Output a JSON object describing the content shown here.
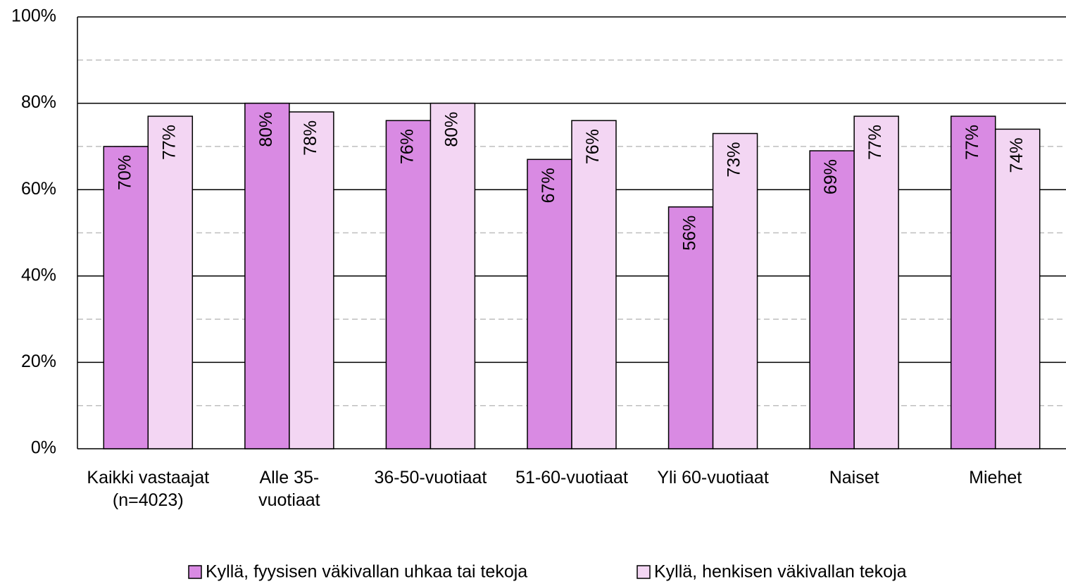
{
  "chart_data": {
    "type": "bar",
    "categories": [
      "Kaikki vastaajat\n(n=4023)",
      "Alle 35-\nvuotiaat",
      "36-50-vuotiaat",
      "51-60-vuotiaat",
      "Yli 60-vuotiaat",
      "Naiset",
      "Miehet"
    ],
    "series": [
      {
        "name": "Kyllä, fyysisen väkivallan uhkaa tai tekoja",
        "color": "#d98ae3",
        "values": [
          70,
          80,
          76,
          67,
          56,
          69,
          77
        ],
        "value_labels": [
          "70%",
          "80%",
          "76%",
          "67%",
          "56%",
          "69%",
          "77%"
        ]
      },
      {
        "name": "Kyllä, henkisen väkivallan tekoja",
        "color": "#f3d6f3",
        "values": [
          77,
          78,
          80,
          76,
          73,
          77,
          74
        ],
        "value_labels": [
          "77%",
          "78%",
          "80%",
          "76%",
          "73%",
          "77%",
          "74%"
        ]
      }
    ],
    "ylim": [
      0,
      100
    ],
    "yticks": [
      {
        "value": 0,
        "label": "0%"
      },
      {
        "value": 20,
        "label": "20%"
      },
      {
        "value": 40,
        "label": "40%"
      },
      {
        "value": 60,
        "label": "60%"
      },
      {
        "value": 80,
        "label": "80%"
      },
      {
        "value": 100,
        "label": "100%"
      }
    ],
    "minor_yticks": [
      10,
      30,
      50,
      70,
      90
    ],
    "grid": true,
    "legend": "bottom"
  }
}
